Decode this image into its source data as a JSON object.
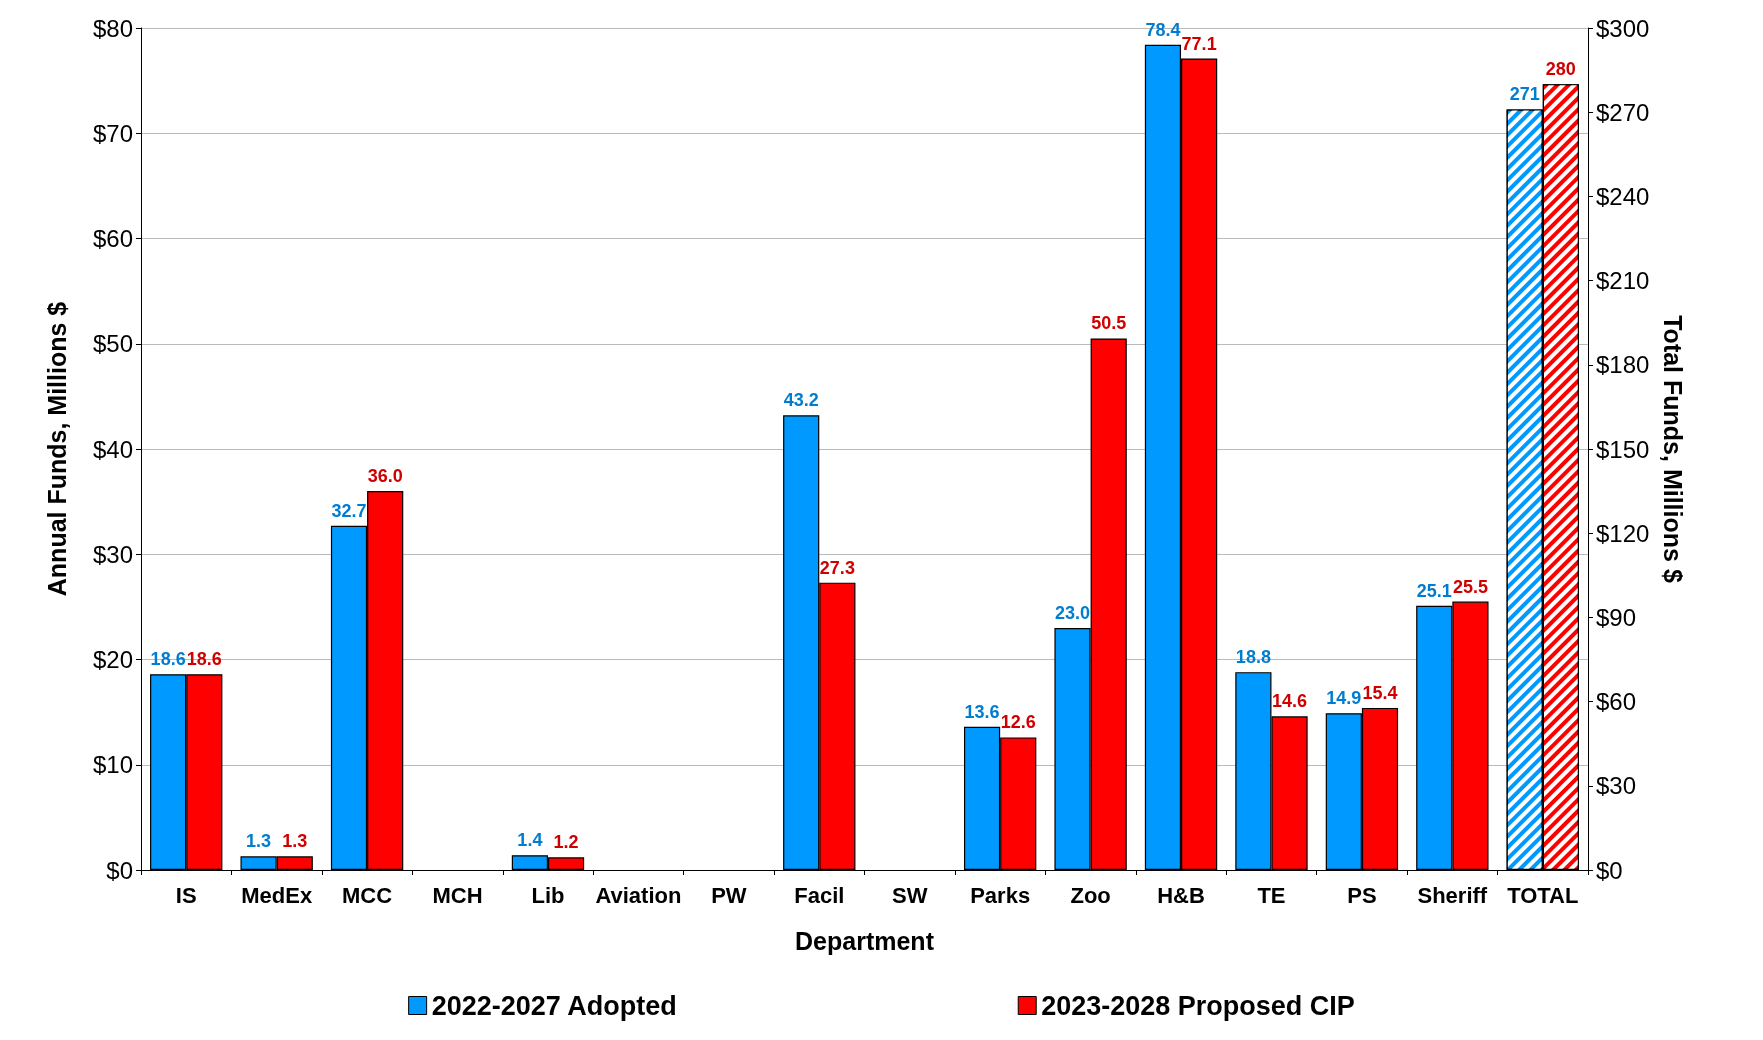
{
  "chart_data": {
    "type": "bar",
    "xlabel": "Department",
    "ylabel": "Annual Funds, Millions $",
    "y2label": "Total Funds, Millions $",
    "categories": [
      "IS",
      "MedEx",
      "MCC",
      "MCH",
      "Lib",
      "Aviation",
      "PW",
      "Facil",
      "SW",
      "Parks",
      "Zoo",
      "H&B",
      "TE",
      "PS",
      "Sheriff",
      "TOTAL"
    ],
    "series": [
      {
        "name": "2022-2027 Adopted",
        "color": "#0099ff",
        "values": [
          18.6,
          1.3,
          32.7,
          null,
          1.4,
          null,
          null,
          43.2,
          null,
          13.6,
          23.0,
          78.4,
          18.8,
          14.9,
          25.1,
          null
        ],
        "value_labels": [
          "18.6",
          "1.3",
          "32.7",
          null,
          "1.4",
          null,
          null,
          "43.2",
          null,
          "13.6",
          "23.0",
          "78.4",
          "18.8",
          "14.9",
          "25.1",
          null
        ]
      },
      {
        "name": "2023-2028 Proposed CIP",
        "color": "#ff0000",
        "values": [
          18.6,
          1.3,
          36.0,
          null,
          1.2,
          null,
          null,
          27.3,
          null,
          12.6,
          50.5,
          77.1,
          14.6,
          15.4,
          25.5,
          null
        ],
        "value_labels": [
          "18.6",
          "1.3",
          "36.0",
          null,
          "1.2",
          null,
          null,
          "27.3",
          null,
          "12.6",
          "50.5",
          "77.1",
          "14.6",
          "15.4",
          "25.5",
          null
        ]
      },
      {
        "color": "#0099ff",
        "axis": "y2",
        "values": [
          null,
          null,
          null,
          null,
          null,
          null,
          null,
          null,
          null,
          null,
          null,
          null,
          null,
          null,
          null,
          271
        ],
        "value_labels": [
          null,
          null,
          null,
          null,
          null,
          null,
          null,
          null,
          null,
          null,
          null,
          null,
          null,
          null,
          null,
          "271"
        ]
      },
      {
        "color": "#ff0000",
        "axis": "y2",
        "values": [
          null,
          null,
          null,
          null,
          null,
          null,
          null,
          null,
          null,
          null,
          null,
          null,
          null,
          null,
          null,
          280
        ],
        "value_labels": [
          null,
          null,
          null,
          null,
          null,
          null,
          null,
          null,
          null,
          null,
          null,
          null,
          null,
          null,
          null,
          "280"
        ]
      }
    ],
    "ylim": [
      0,
      80
    ],
    "yticks": [
      {
        "value": 0,
        "label": "$0"
      },
      {
        "value": 10,
        "label": "$10"
      },
      {
        "value": 20,
        "label": "$20"
      },
      {
        "value": 30,
        "label": "$30"
      },
      {
        "value": 40,
        "label": "$40"
      },
      {
        "value": 50,
        "label": "$50"
      },
      {
        "value": 60,
        "label": "$60"
      },
      {
        "value": 70,
        "label": "$70"
      },
      {
        "value": 80,
        "label": "$80"
      }
    ],
    "y2lim": [
      0,
      300
    ],
    "y2ticks": [
      {
        "value": 0,
        "label": "$0"
      },
      {
        "value": 30,
        "label": "$30"
      },
      {
        "value": 60,
        "label": "$60"
      },
      {
        "value": 90,
        "label": "$90"
      },
      {
        "value": 120,
        "label": "$120"
      },
      {
        "value": 150,
        "label": "$150"
      },
      {
        "value": 180,
        "label": "$180"
      },
      {
        "value": 210,
        "label": "$210"
      },
      {
        "value": 240,
        "label": "$240"
      },
      {
        "value": 270,
        "label": "$270"
      },
      {
        "value": 300,
        "label": "$300"
      }
    ],
    "grid": "y",
    "legend": "bottom"
  }
}
